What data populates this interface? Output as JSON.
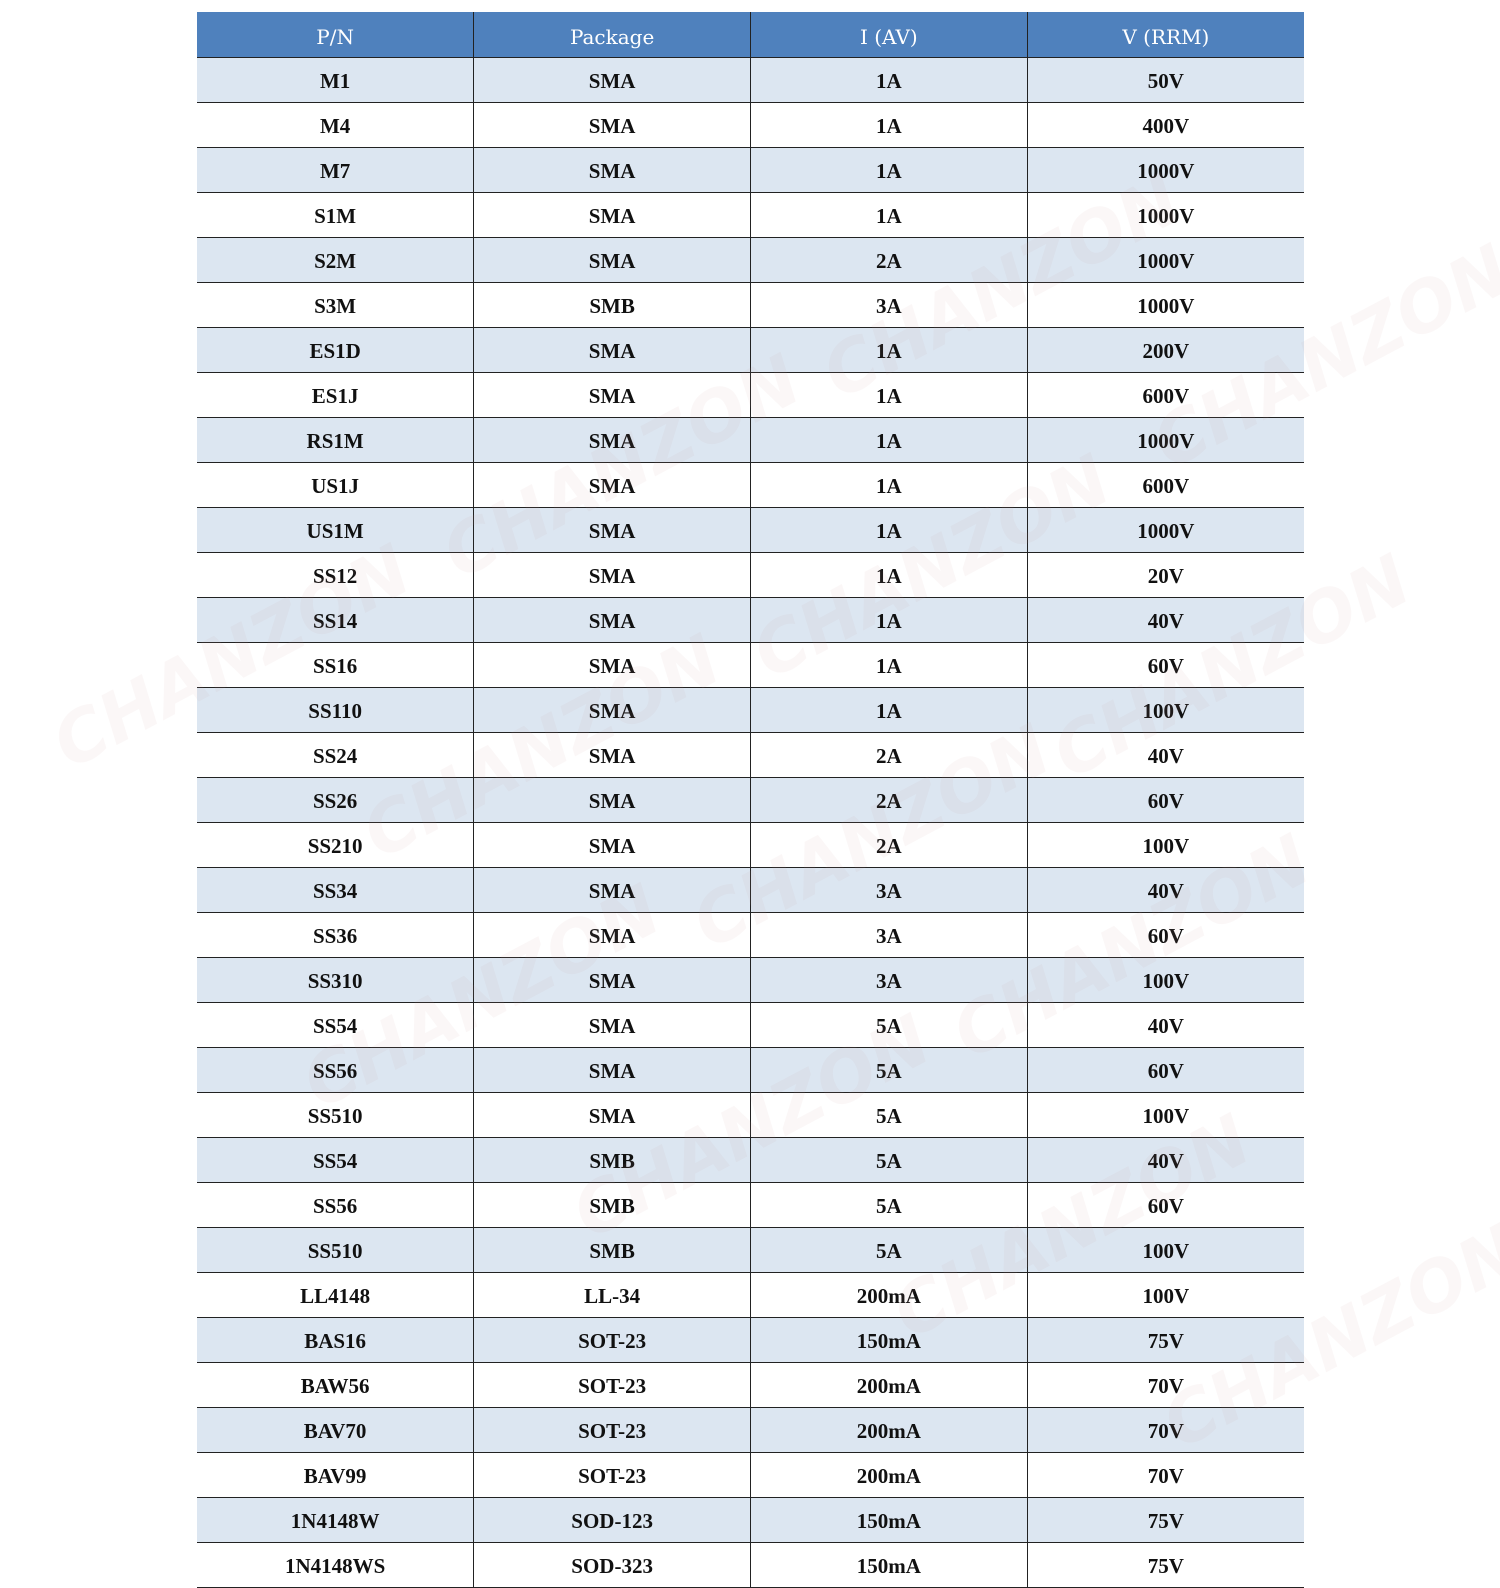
{
  "colors": {
    "header_bg": "#4F81BD",
    "header_text": "#FFFFFF",
    "alt_row_bg": "#DCE6F1",
    "row_bg": "#FFFFFF"
  },
  "watermark": "CHANZON",
  "table": {
    "headers": [
      "P/N",
      "Package",
      "I (AV)",
      "V (RRM)"
    ],
    "rows": [
      [
        "M1",
        "SMA",
        "1A",
        "50V"
      ],
      [
        "M4",
        "SMA",
        "1A",
        "400V"
      ],
      [
        "M7",
        "SMA",
        "1A",
        "1000V"
      ],
      [
        "S1M",
        "SMA",
        "1A",
        "1000V"
      ],
      [
        "S2M",
        "SMA",
        "2A",
        "1000V"
      ],
      [
        "S3M",
        "SMB",
        "3A",
        "1000V"
      ],
      [
        "ES1D",
        "SMA",
        "1A",
        "200V"
      ],
      [
        "ES1J",
        "SMA",
        "1A",
        "600V"
      ],
      [
        "RS1M",
        "SMA",
        "1A",
        "1000V"
      ],
      [
        "US1J",
        "SMA",
        "1A",
        "600V"
      ],
      [
        "US1M",
        "SMA",
        "1A",
        "1000V"
      ],
      [
        "SS12",
        "SMA",
        "1A",
        "20V"
      ],
      [
        "SS14",
        "SMA",
        "1A",
        "40V"
      ],
      [
        "SS16",
        "SMA",
        "1A",
        "60V"
      ],
      [
        "SS110",
        "SMA",
        "1A",
        "100V"
      ],
      [
        "SS24",
        "SMA",
        "2A",
        "40V"
      ],
      [
        "SS26",
        "SMA",
        "2A",
        "60V"
      ],
      [
        "SS210",
        "SMA",
        "2A",
        "100V"
      ],
      [
        "SS34",
        "SMA",
        "3A",
        "40V"
      ],
      [
        "SS36",
        "SMA",
        "3A",
        "60V"
      ],
      [
        "SS310",
        "SMA",
        "3A",
        "100V"
      ],
      [
        "SS54",
        "SMA",
        "5A",
        "40V"
      ],
      [
        "SS56",
        "SMA",
        "5A",
        "60V"
      ],
      [
        "SS510",
        "SMA",
        "5A",
        "100V"
      ],
      [
        "SS54",
        "SMB",
        "5A",
        "40V"
      ],
      [
        "SS56",
        "SMB",
        "5A",
        "60V"
      ],
      [
        "SS510",
        "SMB",
        "5A",
        "100V"
      ],
      [
        "LL4148",
        "LL-34",
        "200mA",
        "100V"
      ],
      [
        "BAS16",
        "SOT-23",
        "150mA",
        "75V"
      ],
      [
        "BAW56",
        "SOT-23",
        "200mA",
        "70V"
      ],
      [
        "BAV70",
        "SOT-23",
        "200mA",
        "70V"
      ],
      [
        "BAV99",
        "SOT-23",
        "200mA",
        "70V"
      ],
      [
        "1N4148W",
        "SOD-123",
        "150mA",
        "75V"
      ],
      [
        "1N4148WS",
        "SOD-323",
        "150mA",
        "75V"
      ]
    ]
  }
}
